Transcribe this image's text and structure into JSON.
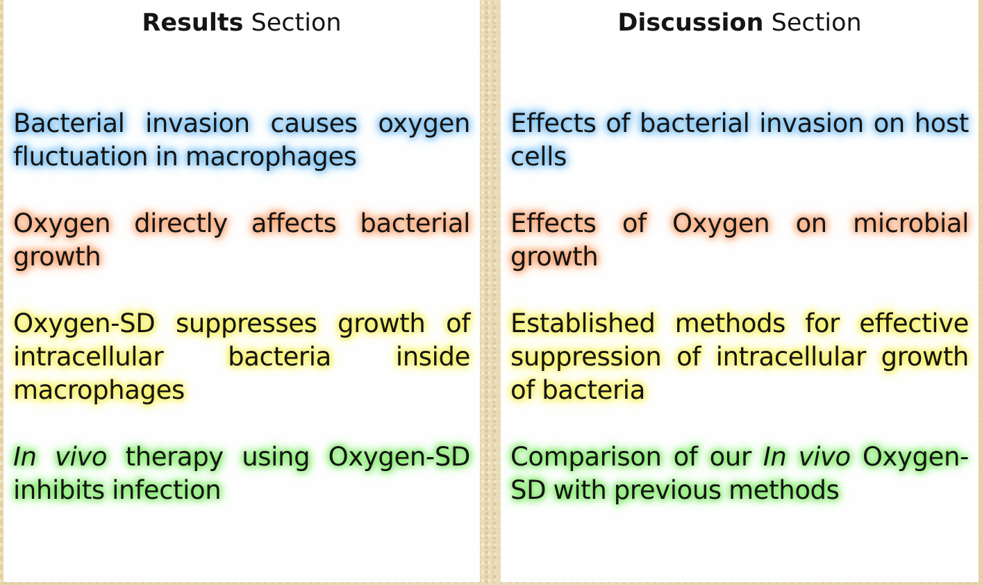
{
  "results": {
    "header_bold": "Results",
    "header_rest": " Section",
    "items": [
      {
        "text": "Bacterial invasion causes oxygen fluctuation in macrophages"
      },
      {
        "text": "Oxygen directly affects bacterial growth"
      },
      {
        "text": "Oxygen-SD suppresses growth of intracellular bacteria inside macrophages"
      },
      {
        "italic": "In vivo",
        "text": " therapy using Oxygen-SD inhibits infection"
      }
    ]
  },
  "discussion": {
    "header_bold": "Discussion",
    "header_rest": " Section",
    "items": [
      {
        "text": "Effects of bacterial invasion on host cells"
      },
      {
        "text": "Effects of Oxygen on microbial growth"
      },
      {
        "text": "Established methods for effective suppression of intracellular growth of bacteria"
      },
      {
        "pre": "Comparison of our ",
        "italic": "In vivo",
        "post": " Oxygen-SD with previous methods"
      }
    ]
  },
  "colors": {
    "blue": "#79bff0",
    "orange": "#f7a06c",
    "yellow": "#f4ee55",
    "green": "#7ce863",
    "background": "#e6d6ad"
  }
}
